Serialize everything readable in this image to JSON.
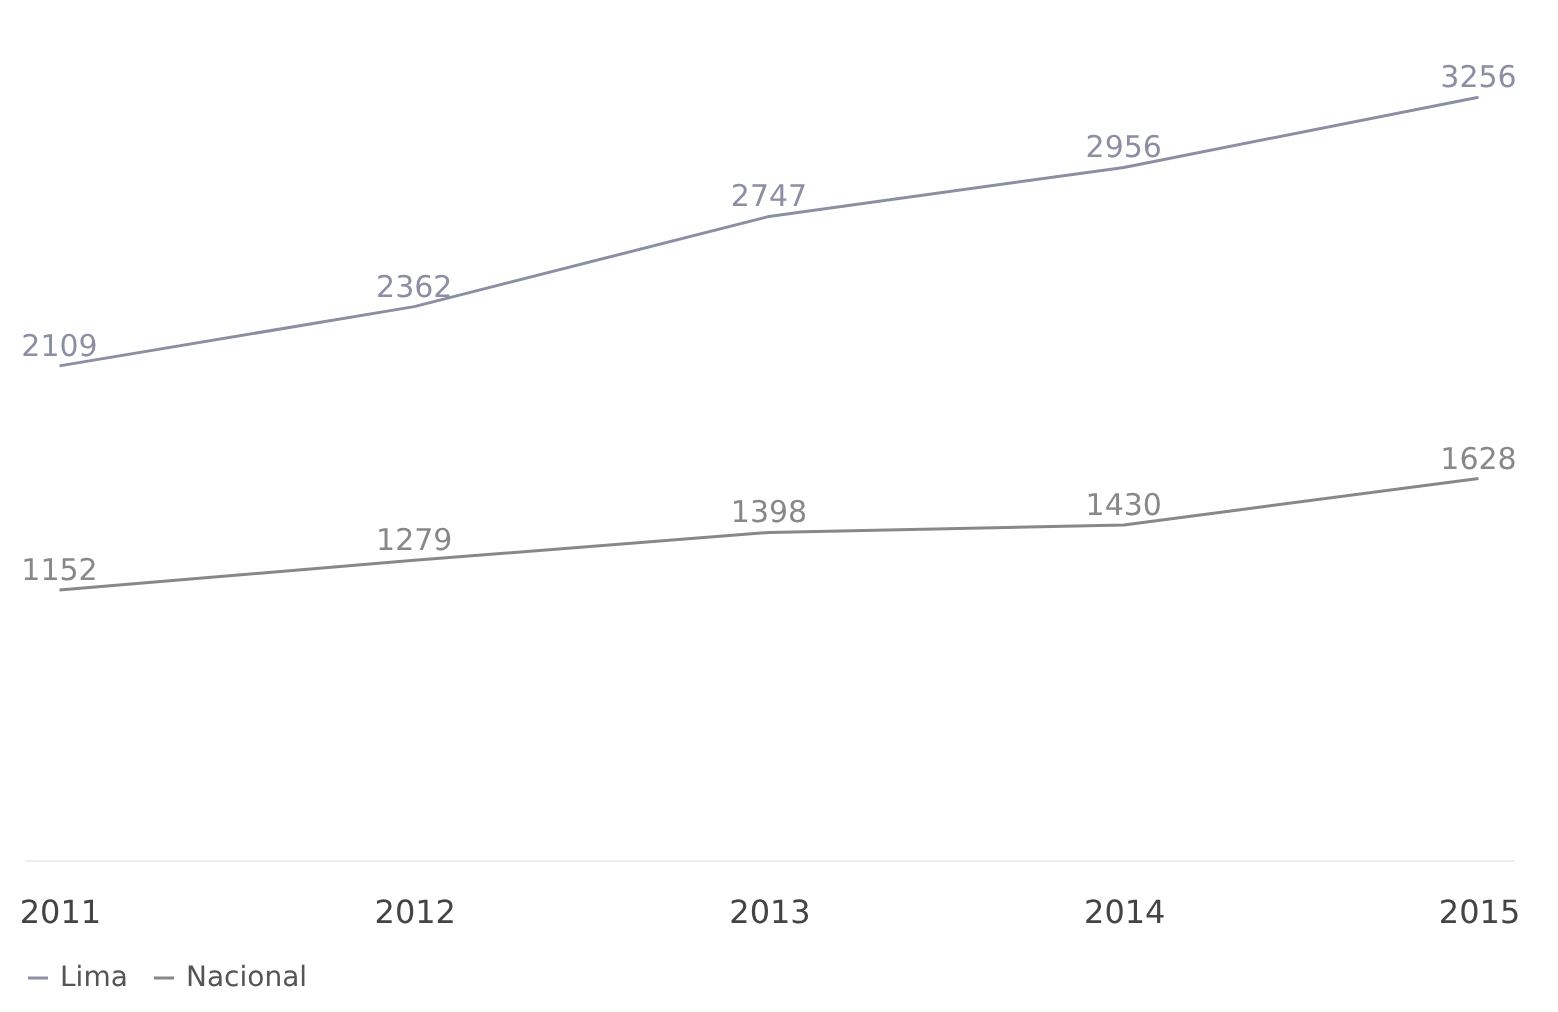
{
  "chart_data": {
    "type": "line",
    "categories": [
      "2011",
      "2012",
      "2013",
      "2014",
      "2015"
    ],
    "series": [
      {
        "name": "Lima",
        "color": "#8c8fa3",
        "values": [
          2109,
          2362,
          2747,
          2956,
          3256
        ]
      },
      {
        "name": "Nacional",
        "color": "#888888",
        "values": [
          1152,
          1279,
          1398,
          1430,
          1628
        ]
      }
    ],
    "tick_labels": "x",
    "data_labels": true,
    "legend": "bottom",
    "grid": false,
    "marker": "none",
    "line_style": "solid"
  }
}
